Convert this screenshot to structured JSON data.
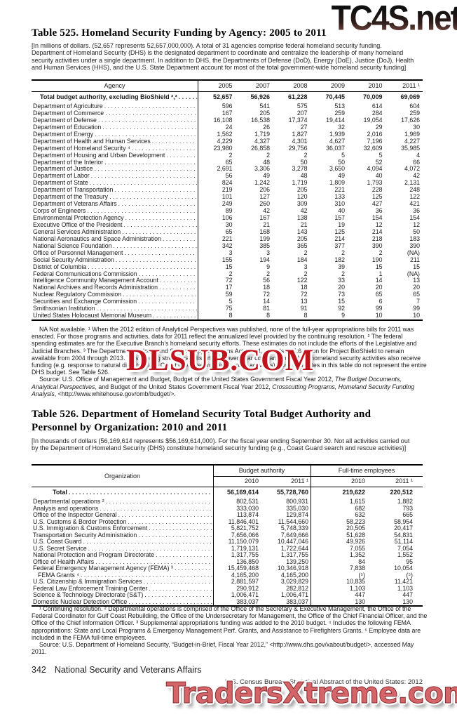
{
  "watermarks": {
    "top": "TC4S.net",
    "middle": "DLSUB.COM",
    "bottom": "TradersXtreme.com"
  },
  "table525": {
    "title": "Table 525. Homeland Security Funding by Agency: 2005 to 2011",
    "intro": "[In millions of dollars. (52,657 represents 52,657,000,000). A total of 31 agencies comprise federal homeland security funding. Department of Homeland Security (DHS) is the designated department to coordinate and centralize the leadership of many homeland security activities under a single department. In addition to DHS, the Departments of Defense (DoD), Energy (DoE), Justice (DoJ), Health and Human Services (HHS), and the U.S. State Department account for most of the total government-wide homeland security funding]",
    "columns": [
      "Agency",
      "2005",
      "2007",
      "2008",
      "2009",
      "2010",
      "2011 ¹"
    ],
    "rows": [
      {
        "label": "Total budget authority, excluding BioShield ²,³",
        "total": true,
        "values": [
          "52,657",
          "56,926",
          "61,228",
          "70,445",
          "70,009",
          "69,069"
        ]
      },
      {
        "label": "Department of Agriculture",
        "values": [
          "596",
          "541",
          "575",
          "513",
          "614",
          "604"
        ]
      },
      {
        "label": "Department of Commerce",
        "values": [
          "167",
          "205",
          "207",
          "259",
          "284",
          "259"
        ]
      },
      {
        "label": "Department of Defense",
        "values": [
          "16,108",
          "16,538",
          "17,374",
          "19,414",
          "19,054",
          "17,626"
        ]
      },
      {
        "label": "Department of Education",
        "values": [
          "24",
          "26",
          "27",
          "32",
          "29",
          "30"
        ]
      },
      {
        "label": "Department of Energy",
        "values": [
          "1,562",
          "1,719",
          "1,827",
          "1,939",
          "2,016",
          "1,969"
        ]
      },
      {
        "label": "Department of Health and Human Services",
        "values": [
          "4,229",
          "4,327",
          "4,301",
          "4,627",
          "7,196",
          "4,227"
        ]
      },
      {
        "label": "Department of Homeland Security ⁴",
        "values": [
          "23,980",
          "26,858",
          "29,756",
          "36,037",
          "32,609",
          "35,985"
        ]
      },
      {
        "label": "Department of Housing and Urban Development",
        "values": [
          "2",
          "2",
          "2",
          "5",
          "5",
          "4"
        ]
      },
      {
        "label": "Department of the Interior",
        "values": [
          "65",
          "48",
          "50",
          "50",
          "52",
          "66"
        ]
      },
      {
        "label": "Department of Justice",
        "values": [
          "2,691",
          "3,306",
          "3,278",
          "3,650",
          "4,094",
          "4,072"
        ]
      },
      {
        "label": "Department of Labor",
        "values": [
          "56",
          "49",
          "48",
          "49",
          "40",
          "42"
        ]
      },
      {
        "label": "Department of State",
        "values": [
          "824",
          "1,242",
          "1,719",
          "1,809",
          "1,793",
          "2,131"
        ]
      },
      {
        "label": "Department of Transportation",
        "values": [
          "219",
          "206",
          "205",
          "221",
          "228",
          "248"
        ]
      },
      {
        "label": "Department of the Treasury",
        "values": [
          "101",
          "127",
          "120",
          "133",
          "125",
          "122"
        ]
      },
      {
        "label": "Department of Veterans Affairs",
        "values": [
          "249",
          "260",
          "309",
          "310",
          "427",
          "421"
        ]
      },
      {
        "label": "Corps of Engineers",
        "values": [
          "89",
          "42",
          "42",
          "40",
          "36",
          "36"
        ]
      },
      {
        "label": "Environmental Protection Agency",
        "values": [
          "106",
          "167",
          "138",
          "157",
          "154",
          "154"
        ]
      },
      {
        "label": "Executive Office of the President",
        "values": [
          "30",
          "21",
          "21",
          "19",
          "12",
          "12"
        ]
      },
      {
        "label": "General Services Administration",
        "values": [
          "65",
          "168",
          "143",
          "125",
          "214",
          "50"
        ]
      },
      {
        "label": "National Aeronautics and Space Administration",
        "values": [
          "221",
          "199",
          "205",
          "214",
          "218",
          "183"
        ]
      },
      {
        "label": "National Science Foundation",
        "values": [
          "342",
          "385",
          "365",
          "377",
          "390",
          "390"
        ]
      },
      {
        "label": "Office of Personnel Management",
        "values": [
          "3",
          "3",
          "2",
          "2",
          "2",
          "(NA)"
        ]
      },
      {
        "label": "Social Security Administration",
        "values": [
          "155",
          "194",
          "184",
          "182",
          "190",
          "211"
        ]
      },
      {
        "label": "District of Columbia",
        "values": [
          "15",
          "9",
          "3",
          "39",
          "15",
          "15"
        ]
      },
      {
        "label": "Federal Communications Commission",
        "values": [
          "2",
          "2",
          "2",
          "2",
          "1",
          "(NA)"
        ]
      },
      {
        "label": "Intelligence Community Management Account",
        "values": [
          "72",
          "56",
          "122",
          "33",
          "14",
          "13"
        ]
      },
      {
        "label": "National Archives and Records Administration",
        "values": [
          "17",
          "18",
          "18",
          "20",
          "20",
          "20"
        ]
      },
      {
        "label": "Nuclear Regulatory Commission",
        "values": [
          "59",
          "72",
          "72",
          "73",
          "65",
          "65"
        ]
      },
      {
        "label": "Securities and Exchange Commission",
        "values": [
          "5",
          "14",
          "13",
          "15",
          "6",
          "7"
        ]
      },
      {
        "label": "Smithsonian Institution",
        "values": [
          "75",
          "81",
          "91",
          "92",
          "99",
          "99"
        ]
      },
      {
        "label": "United States Holocaust Memorial Museum",
        "values": [
          "8",
          "8",
          "8",
          "9",
          "10",
          "10"
        ]
      }
    ],
    "footnote": "NA Not available. ¹ When the 2012 edition of Analytical Perspectives was published, none of the full-year appropriations bills for 2011 was enacted. For those programs and activities, data for 2011 reflect the annualized level provided by the continuing resolution. ² The federal spending estimates are for the Executive Branch’s homeland security efforts. These estimates do not include the efforts of the Legislative and Judicial Branches. ³ The Department of Homeland Security Appropriations Act, 2004, provided $5.6 billion for Project BioShield to remain available from 2004 through 2013. This funding stream can distort year-over-year comparisons. ⁴ Non-homeland security activities also receive funding (e.g. response to natural disasters and Coast Guard search and rescue activities). DHS estimates in this table do not represent the entire DHS budget. See Table 526.",
    "source_segments": {
      "s1": "Source: U.S. Office of Management and Budget, Budget of the United States Government Fiscal Year 2012, ",
      "s2": "The Budget Documents, Analytical Perspectives",
      "s3": ", and Budget of the United States Government Fiscal Year 2012, ",
      "s4": "Crosscutting Programs, Homeland Security Funding Analysis",
      "s5": ", <http://www.whitehouse.gov/omb/budget/>."
    }
  },
  "table526": {
    "title_line1": "Table 526. Department of Homeland Security Total Budget Authority and",
    "title_line2": "Personnel by Organization: 2010 and 2011",
    "intro": "[In thousands of dollars (56,169,614 represents $56,169,614,000). For the fiscal year ending September 30. Not all activities carried out by the Department of Homeland Security (DHS) constitute homeland security funding (e.g., Coast Guard search and rescue activities)]",
    "org_header": "Organization",
    "group1": "Budget authority",
    "group2": "Full-time employees",
    "sub_columns": [
      "2010",
      "2011 ¹",
      "2010",
      "2011 ¹"
    ],
    "rows": [
      {
        "label": "Total",
        "total": true,
        "values": [
          "56,169,614",
          "55,728,760",
          "219,622",
          "220,512"
        ]
      },
      {
        "label": "Departmental operations ²",
        "values": [
          "802,531",
          "800,931",
          "1,615",
          "1,882"
        ]
      },
      {
        "label": "Analysis and operations",
        "values": [
          "333,030",
          "335,030",
          "682",
          "793"
        ]
      },
      {
        "label": "Office of the Inspector General",
        "values": [
          "113,874",
          "129,874",
          "632",
          "665"
        ]
      },
      {
        "label": "U.S. Customs & Border Protection",
        "values": [
          "11,846,401",
          "11,544,660",
          "58,223",
          "58,954"
        ]
      },
      {
        "label": "U.S. Immigration & Customs Enforcement",
        "values": [
          "5,821,752",
          "5,748,339",
          "20,505",
          "20,417"
        ]
      },
      {
        "label": "Transportation Security Administration",
        "values": [
          "7,656,066",
          "7,649,666",
          "51,628",
          "54,831"
        ]
      },
      {
        "label": "U.S. Coast Guard",
        "values": [
          "11,150,079",
          "10,447,046",
          "49,926",
          "51,114"
        ]
      },
      {
        "label": "U.S. Secret Service",
        "values": [
          "1,719,131",
          "1,722,644",
          "7,055",
          "7,054"
        ]
      },
      {
        "label": "National Protection and Program Directorate",
        "values": [
          "1,317,755",
          "1,317,755",
          "1,352",
          "1,552"
        ]
      },
      {
        "label": "Office of Health Affairs",
        "values": [
          "136,850",
          "139,250",
          "84",
          "95"
        ]
      },
      {
        "label": "Federal Emergency Management Agency (FEMA) ³",
        "values": [
          "15,459,468",
          "10,346,918",
          "7,838",
          "10,054"
        ]
      },
      {
        "label": "FEMA Grants ⁴",
        "indent": 9,
        "values": [
          "4,165,200",
          "4,165,200",
          "(⁵)",
          "(⁵)"
        ]
      },
      {
        "label": "U.S. Citizenship & Immigration Services",
        "values": [
          "2,881,597",
          "3,029,829",
          "10,835",
          "11,421"
        ]
      },
      {
        "label": "Federal Law Enforcement Training Center",
        "values": [
          "290,912",
          "282,812",
          "1,103",
          "1,103"
        ]
      },
      {
        "label": "Science & Technology Directorate (S&T)",
        "values": [
          "1,006,471",
          "1,006,471",
          "447",
          "447"
        ]
      },
      {
        "label": "Domestic Nuclear Detection Office",
        "values": [
          "383,037",
          "383,037",
          "130",
          "130"
        ]
      }
    ],
    "footnote": "¹ Continuing resolution. ² Departmental operations is comprised of the Office of the Secretary & Executive Management, the Office of the Federal Coordinator for Gulf Coast Rebuilding, the Office of the Undersecretary for Management, the Office of the Chief Financial Officer, and the Office of the Chief Information Officer. ³ Supplemental appropriations funding was added to the 2010 budget. ⁴ Includes the following FEMA appropriations: State and Local Programs & Emergency Management Perf. Grants, and Assistance to Firefighters Grants. ⁵ Employee data are included in the FEMA full-time employees.",
    "source": "Source: U.S. Department of Homeland Security, “Budget-in-Brief, Fiscal Year 2012,” <http://www.dhs.gov/xabout/budget/>, accessed May 2011."
  },
  "footer": {
    "page_number": "342",
    "section": "National Security and Veterans Affairs",
    "attribution": "U.S. Census Bureau, Statistical Abstract of the United States: 2012"
  }
}
